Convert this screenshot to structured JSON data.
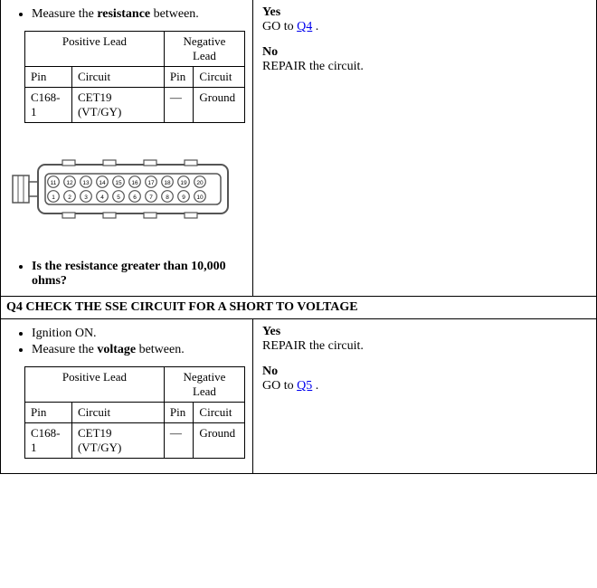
{
  "q3": {
    "measure_pre": "Measure the ",
    "measure_bold": "resistance",
    "measure_post": " between.",
    "question_pre": "Is the ",
    "question_bold": "resistance",
    "question_post": " greater than 10,000 ohms?",
    "yes_label": "Yes",
    "yes_action_pre": "GO to ",
    "yes_link": "Q4",
    "yes_action_post": " .",
    "no_label": "No",
    "no_action": "REPAIR the circuit."
  },
  "q4": {
    "header": "Q4 CHECK THE SSE CIRCUIT FOR A SHORT TO VOLTAGE",
    "ignition": "Ignition ON.",
    "measure_pre": "Measure the ",
    "measure_bold": "voltage",
    "measure_post": " between.",
    "yes_label": "Yes",
    "yes_action": "REPAIR the circuit.",
    "no_label": "No",
    "no_action_pre": "GO to ",
    "no_link": "Q5",
    "no_action_post": " ."
  },
  "table": {
    "pos_header": "Positive Lead",
    "neg_header": "Negative Lead",
    "pin_header": "Pin",
    "circuit_header": "Circuit",
    "pin1": "C168-1",
    "circuit1": "CET19 (VT/GY)",
    "pin2": "—",
    "circuit2": "Ground"
  },
  "connector": {
    "top_pins": [
      "11",
      "12",
      "13",
      "14",
      "15",
      "16",
      "17",
      "18",
      "19",
      "20"
    ],
    "bottom_pins": [
      "1",
      "2",
      "3",
      "4",
      "5",
      "6",
      "7",
      "8",
      "9",
      "10"
    ],
    "stroke": "#555555",
    "fill": "#ffffff"
  }
}
